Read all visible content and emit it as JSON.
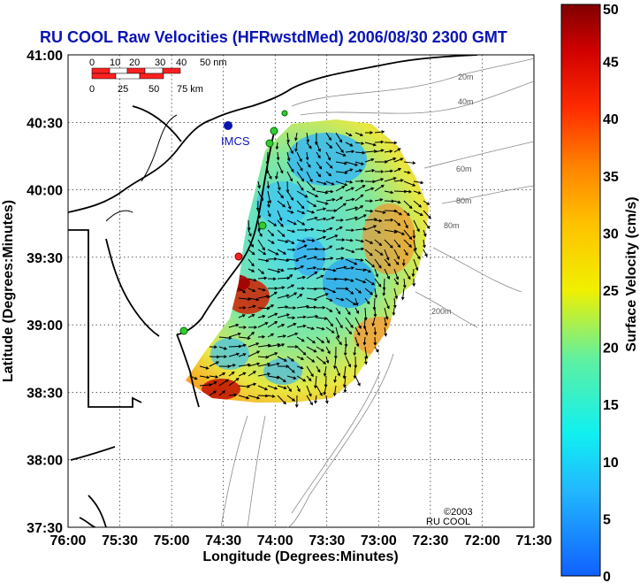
{
  "title": "RU COOL Raw Velocities (HFRwstdMed) 2006/08/30 2300 GMT",
  "xlabel": "Longitude (Degrees:Minutes)",
  "ylabel": "Latitude (Degrees:Minutes)",
  "colorbar_label": "Surface Velocity (cm/s)",
  "xticks": [
    "76:00",
    "75:30",
    "75:00",
    "74:30",
    "74:00",
    "73:30",
    "73:00",
    "72:30",
    "72:00",
    "71:30"
  ],
  "yticks": [
    "41:00",
    "40:30",
    "40:00",
    "39:30",
    "39:00",
    "38:30",
    "38:00",
    "37:30"
  ],
  "colorbar_ticks": [
    "50",
    "45",
    "40",
    "35",
    "30",
    "25",
    "20",
    "15",
    "10",
    "5",
    "0"
  ],
  "scalebar": {
    "nm_labels": [
      "0",
      "10",
      "20",
      "30",
      "40",
      "50 nm"
    ],
    "km_labels": [
      "0",
      "25",
      "50",
      "75 km"
    ]
  },
  "station_label": "IMCS",
  "isobaths": [
    "20m",
    "40m",
    "60m",
    "80m",
    "80m",
    "200m"
  ],
  "copyright": [
    "©2003",
    "RU COOL"
  ],
  "colors": {
    "title": "#0a14b4",
    "station": "#0a14b4",
    "site": "#33cc33",
    "site_alt": "#ff2020"
  },
  "chart_data": {
    "type": "heatmap",
    "variable": "Surface Velocity",
    "units": "cm/s",
    "x_range": [
      "76:00",
      "71:30"
    ],
    "y_range": [
      "37:30",
      "41:00"
    ],
    "colorscale_range": [
      0,
      50
    ],
    "grid": true,
    "vectors": true
  }
}
